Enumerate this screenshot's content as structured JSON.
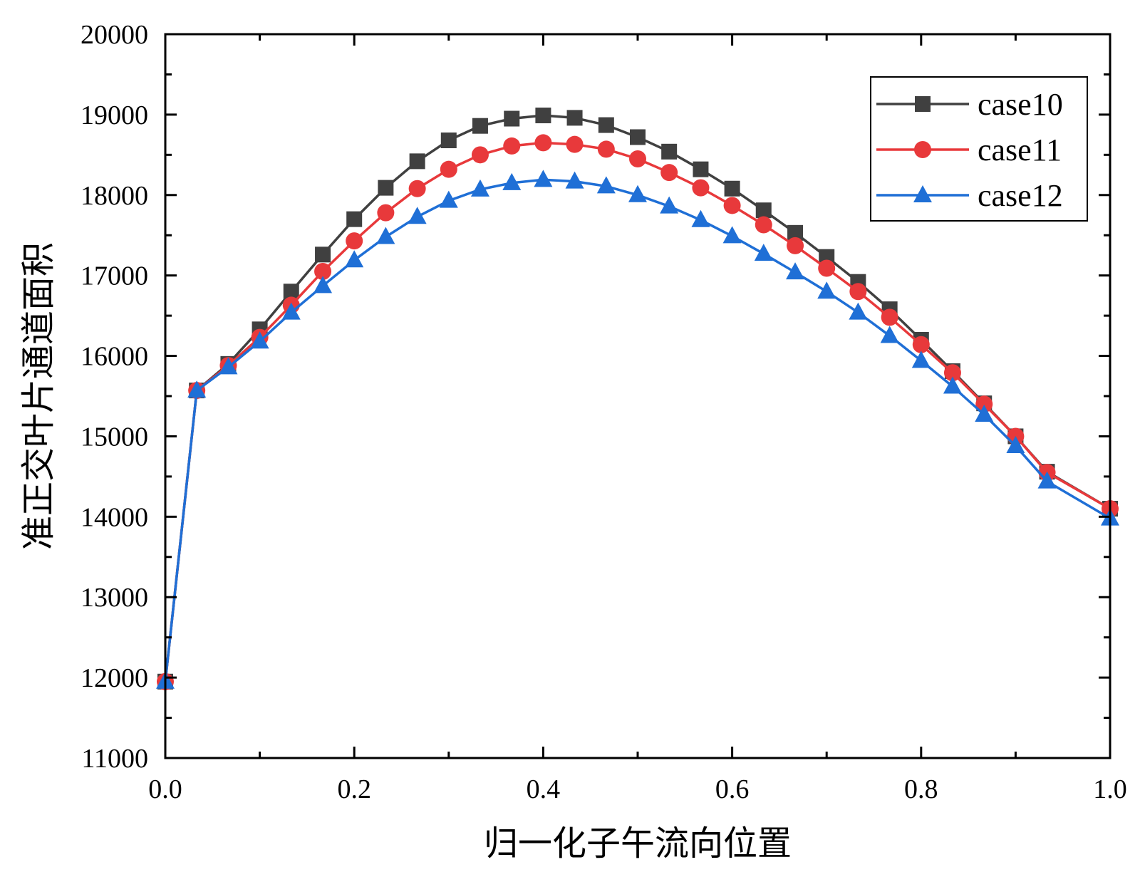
{
  "chart_data": {
    "type": "line",
    "xlabel": "归一化子午流向位置",
    "ylabel": "准正交叶片通道面积",
    "xlim": [
      0.0,
      1.0
    ],
    "ylim": [
      11000,
      20000
    ],
    "x_ticks": [
      "0.0",
      "0.2",
      "0.4",
      "0.6",
      "0.8",
      "1.0"
    ],
    "y_ticks": [
      "11000",
      "12000",
      "13000",
      "14000",
      "15000",
      "16000",
      "17000",
      "18000",
      "19000",
      "20000"
    ],
    "legend_position": "top-right",
    "x": [
      0.0,
      0.0333,
      0.0667,
      0.1,
      0.1333,
      0.1667,
      0.2,
      0.2333,
      0.2667,
      0.3,
      0.3333,
      0.3667,
      0.4,
      0.4333,
      0.4667,
      0.5,
      0.5333,
      0.5667,
      0.6,
      0.6333,
      0.6667,
      0.7,
      0.7333,
      0.7667,
      0.8,
      0.8333,
      0.8667,
      0.9,
      0.9333,
      1.0
    ],
    "series": [
      {
        "name": "case10",
        "color": "#404040",
        "marker": "square",
        "values": [
          11950,
          15570,
          15900,
          16330,
          16800,
          17260,
          17700,
          18090,
          18420,
          18680,
          18860,
          18950,
          18990,
          18960,
          18870,
          18720,
          18540,
          18320,
          18080,
          17810,
          17530,
          17230,
          16920,
          16580,
          16200,
          15810,
          15410,
          15000,
          14560,
          14100
        ]
      },
      {
        "name": "case11",
        "color": "#e8393b",
        "marker": "circle",
        "values": [
          11950,
          15570,
          15880,
          16230,
          16630,
          17050,
          17430,
          17780,
          18080,
          18320,
          18500,
          18610,
          18650,
          18630,
          18570,
          18450,
          18280,
          18090,
          17870,
          17630,
          17370,
          17090,
          16800,
          16480,
          16140,
          15790,
          15400,
          15000,
          14550,
          14100
        ]
      },
      {
        "name": "case12",
        "color": "#1f6fd6",
        "marker": "triangle",
        "values": [
          11950,
          15570,
          15860,
          16180,
          16540,
          16870,
          17190,
          17480,
          17730,
          17930,
          18070,
          18150,
          18190,
          18170,
          18110,
          18000,
          17860,
          17690,
          17490,
          17270,
          17040,
          16800,
          16540,
          16250,
          15940,
          15620,
          15270,
          14880,
          14440,
          13980
        ]
      }
    ]
  }
}
